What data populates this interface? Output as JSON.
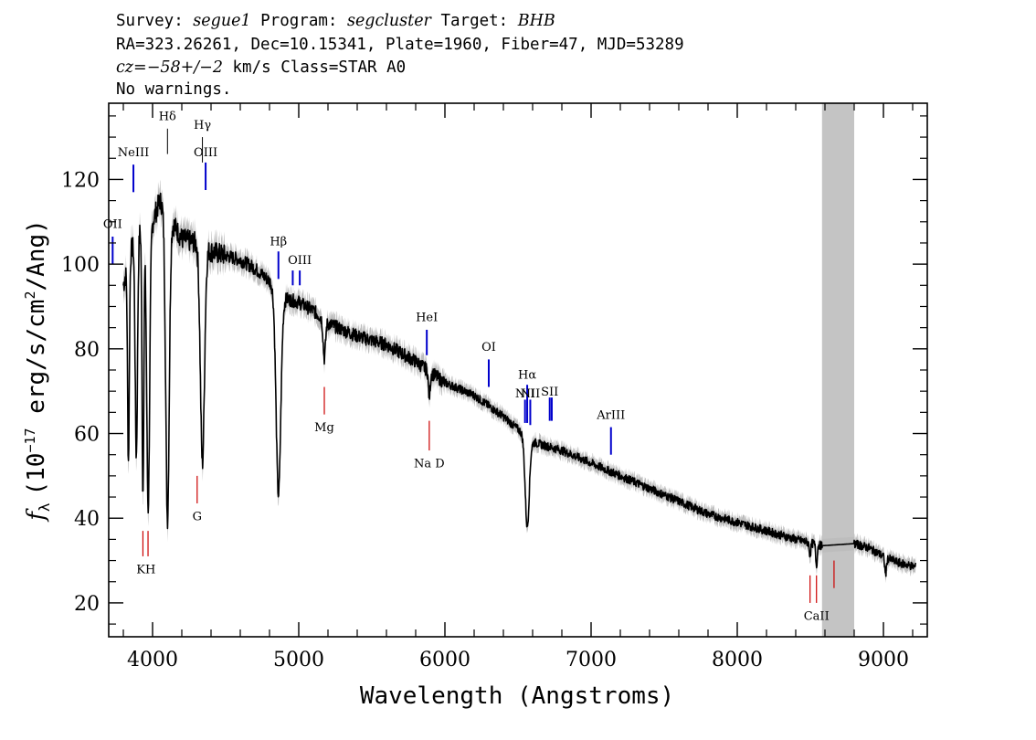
{
  "header": {
    "line1": {
      "survey_label": "Survey: ",
      "survey": "segue1",
      "program_label": " Program: ",
      "program": "segcluster",
      "target_label": " Target: ",
      "target": "BHB"
    },
    "line2": "RA=323.26261, Dec=10.15341, Plate=1960, Fiber=47, MJD=53289",
    "line3": {
      "cz_label": "cz",
      "cz_value": "=−58+/−2",
      "rest": " km/s Class=STAR A0"
    },
    "line4": "No warnings."
  },
  "chart_data": {
    "type": "line",
    "xlabel": "Wavelength (Angstroms)",
    "ylabel": "f_λ (10^-17 erg/s/cm^2/Ang)",
    "ylabel_parts": {
      "f": "f",
      "sub": "λ",
      "pre": "(10",
      "exp1": "−17",
      "mid": " erg/s/cm",
      "exp2": "2",
      "post": "/Ang)"
    },
    "xlim": [
      3700,
      9300
    ],
    "ylim": [
      12,
      138
    ],
    "x_ticks": [
      4000,
      5000,
      6000,
      7000,
      8000,
      9000
    ],
    "y_ticks": [
      20,
      40,
      60,
      80,
      100,
      120
    ],
    "masked_region": [
      8580,
      8800
    ],
    "continuum": [
      [
        3800,
        95
      ],
      [
        3850,
        103
      ],
      [
        3900,
        108
      ],
      [
        3960,
        108
      ],
      [
        4000,
        110
      ],
      [
        4050,
        115
      ],
      [
        4100,
        112
      ],
      [
        4200,
        106
      ],
      [
        4300,
        105
      ],
      [
        4400,
        103
      ],
      [
        4500,
        102
      ],
      [
        4600,
        101
      ],
      [
        4700,
        99
      ],
      [
        4800,
        96
      ],
      [
        4900,
        92
      ],
      [
        5000,
        91
      ],
      [
        5100,
        89
      ],
      [
        5200,
        86
      ],
      [
        5400,
        83
      ],
      [
        5600,
        81
      ],
      [
        5800,
        77
      ],
      [
        6000,
        72
      ],
      [
        6200,
        69
      ],
      [
        6400,
        64
      ],
      [
        6500,
        61
      ],
      [
        6600,
        58
      ],
      [
        6800,
        56
      ],
      [
        7000,
        53
      ],
      [
        7200,
        50
      ],
      [
        7400,
        47
      ],
      [
        7600,
        44
      ],
      [
        7800,
        41
      ],
      [
        8000,
        39
      ],
      [
        8200,
        37
      ],
      [
        8400,
        35
      ],
      [
        8580,
        33.5
      ],
      [
        8800,
        34
      ],
      [
        8900,
        33
      ],
      [
        9000,
        31
      ],
      [
        9100,
        29.5
      ],
      [
        9220,
        28.5
      ]
    ],
    "absorption": [
      {
        "center": 3835,
        "depth": 47,
        "width": 6
      },
      {
        "center": 3889,
        "depth": 52,
        "width": 8
      },
      {
        "center": 3934,
        "depth": 62,
        "width": 6
      },
      {
        "center": 3970,
        "depth": 66,
        "width": 10
      },
      {
        "center": 4102,
        "depth": 72,
        "width": 12
      },
      {
        "center": 4341,
        "depth": 51,
        "width": 14
      },
      {
        "center": 4861,
        "depth": 48,
        "width": 16
      },
      {
        "center": 5175,
        "depth": 9,
        "width": 8
      },
      {
        "center": 5893,
        "depth": 6,
        "width": 6
      },
      {
        "center": 6563,
        "depth": 21,
        "width": 14
      },
      {
        "center": 8498,
        "depth": 3,
        "width": 5
      },
      {
        "center": 8542,
        "depth": 5,
        "width": 5
      },
      {
        "center": 8662,
        "depth": 4,
        "width": 5
      },
      {
        "center": 9015,
        "depth": 4,
        "width": 6
      }
    ],
    "emission_lines": [
      {
        "label": "OII",
        "x": 3727,
        "y_top": 106.5,
        "y_bottom": 100,
        "label_y": 108.5,
        "color": "#0000cc"
      },
      {
        "label": "NeIII",
        "x": 3869,
        "y_top": 123.5,
        "y_bottom": 117,
        "label_y": 125.5,
        "color": "#0000cc"
      },
      {
        "label": "Hδ",
        "x": 4102,
        "y_top": 132,
        "y_bottom": 126,
        "label_y": 134,
        "color": "#000000"
      },
      {
        "label": "Hγ",
        "x": 4341,
        "y_top": 130,
        "y_bottom": 124,
        "label_y": 132,
        "color": "#000000"
      },
      {
        "label": "OIII",
        "x": 4363,
        "y_top": 124,
        "y_bottom": 117.5,
        "label_y": 125.5,
        "color": "#0000cc"
      },
      {
        "label": "Hβ",
        "x": 4861,
        "y_top": 103,
        "y_bottom": 96.5,
        "label_y": 104.5,
        "color": "#0000cc"
      },
      {
        "label": "OIII",
        "x": 4959,
        "y_top": 98.5,
        "y_bottom": 95,
        "label_y": 0,
        "color": "#0000cc"
      },
      {
        "label": "OIII",
        "x": 5007,
        "y_top": 98.5,
        "y_bottom": 95,
        "label_y": 100,
        "color": "#0000cc"
      },
      {
        "label": "HeI",
        "x": 5876,
        "y_top": 84.5,
        "y_bottom": 78.5,
        "label_y": 86.5,
        "color": "#0000cc"
      },
      {
        "label": "OI",
        "x": 6300,
        "y_top": 77.5,
        "y_bottom": 71,
        "label_y": 79.5,
        "color": "#0000cc"
      },
      {
        "label": "NII",
        "x": 6548,
        "y_top": 68,
        "y_bottom": 62.5,
        "label_y": 68.5,
        "color": "#0000cc"
      },
      {
        "label": "Hα",
        "x": 6563,
        "y_top": 71.5,
        "y_bottom": 62.5,
        "label_y": 73,
        "color": "#0000cc"
      },
      {
        "label": "NII",
        "x": 6584,
        "y_top": 68,
        "y_bottom": 62,
        "label_y": 68.5,
        "color": "#0000cc"
      },
      {
        "label": "SII",
        "x": 6717,
        "y_top": 68.5,
        "y_bottom": 63,
        "label_y": 69,
        "color": "#0000cc"
      },
      {
        "label": "SII",
        "x": 6731,
        "y_top": 68.5,
        "y_bottom": 63,
        "label_y": 0,
        "color": "#0000cc"
      },
      {
        "label": "ArIII",
        "x": 7136,
        "y_top": 61.5,
        "y_bottom": 55,
        "label_y": 63.5,
        "color": "#0000cc"
      }
    ],
    "absorption_markers": [
      {
        "label": "KH",
        "x": 3934,
        "y_top": 37,
        "y_bottom": 31,
        "label_y": 27,
        "label_x": 3955,
        "color": "#cc0000"
      },
      {
        "label": "",
        "x": 3969,
        "y_top": 37,
        "y_bottom": 31,
        "label_y": 0,
        "label_x": 3969,
        "color": "#cc0000"
      },
      {
        "label": "G",
        "x": 4305,
        "y_top": 50,
        "y_bottom": 43.5,
        "label_y": 39.5,
        "label_x": 4305,
        "color": "#cc0000"
      },
      {
        "label": "Mg",
        "x": 5175,
        "y_top": 71,
        "y_bottom": 64.5,
        "label_y": 60.5,
        "label_x": 5175,
        "color": "#cc0000"
      },
      {
        "label": "Na D",
        "x": 5893,
        "y_top": 63,
        "y_bottom": 56,
        "label_y": 52,
        "label_x": 5893,
        "color": "#cc0000"
      },
      {
        "label": "CaII",
        "x": 8498,
        "y_top": 26.5,
        "y_bottom": 20,
        "label_y": 16,
        "label_x": 8542,
        "color": "#cc0000"
      },
      {
        "label": "",
        "x": 8542,
        "y_top": 26.5,
        "y_bottom": 20,
        "label_y": 0,
        "label_x": 8542,
        "color": "#cc0000"
      },
      {
        "label": "",
        "x": 8662,
        "y_top": 30,
        "y_bottom": 23.5,
        "label_y": 0,
        "label_x": 8662,
        "color": "#cc0000"
      }
    ]
  }
}
